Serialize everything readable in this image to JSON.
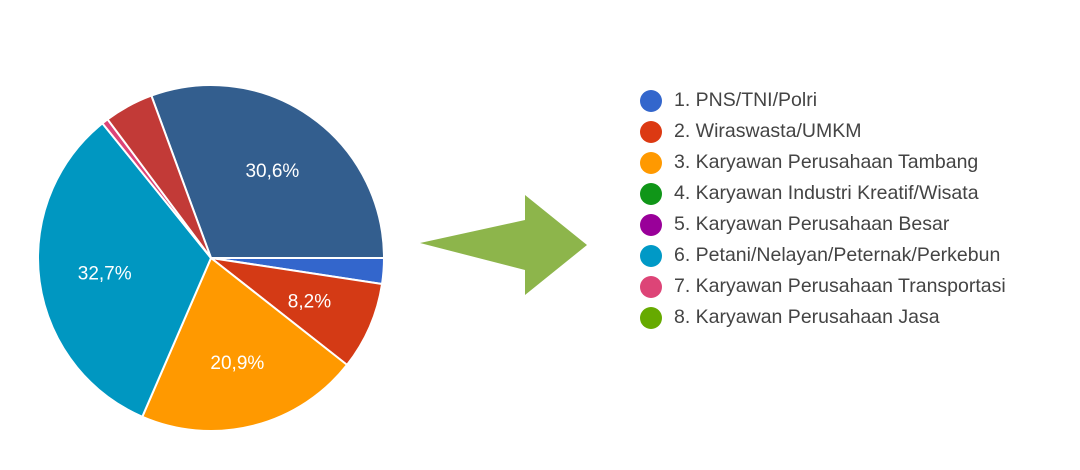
{
  "chart_data": {
    "type": "pie",
    "categories": [
      "1. PNS/TNI/Polri",
      "2. Wiraswasta/UMKM",
      "3. Karyawan Perusahaan Tambang",
      "4. Karyawan Industri Kreatif/Wisata",
      "5. Karyawan Perusahaan Besar",
      "6. Petani/Nelayan/Peternak/Perkebun",
      "7. Karyawan Perusahaan Transportasi",
      "8. Karyawan Perusahaan Jasa"
    ],
    "values": [
      2.4,
      8.2,
      20.9,
      0.0,
      0.0,
      32.7,
      0.6,
      4.6
    ],
    "slice_order": [
      0,
      1,
      2,
      5,
      6,
      7,
      8
    ],
    "extra_slice": {
      "value": 30.6,
      "label": "30,6%",
      "color": "#335E8E"
    },
    "data_labels": [
      "",
      "8,2%",
      "20,9%",
      "",
      "",
      "32,7%",
      "",
      ""
    ],
    "colors": [
      "#3366CC",
      "#DC3912",
      "#FF9900",
      "#109618",
      "#990099",
      "#0099C6",
      "#DD4477",
      "#66AA00"
    ],
    "slice_colors": [
      "#3366CC",
      "#D43A15",
      "#FF9900",
      "#109618",
      "#990099",
      "#0097C1",
      "#DD4477",
      "#C23A37"
    ],
    "legend": {
      "position": "right",
      "items": [
        "1. PNS/TNI/Polri",
        "2. Wiraswasta/UMKM",
        "3. Karyawan Perusahaan Tambang",
        "4. Karyawan Industri Kreatif/Wisata",
        "5. Karyawan Perusahaan Besar",
        "6. Petani/Nelayan/Peternak/Perkebun",
        "7. Karyawan Perusahaan Transportasi",
        "8. Karyawan Perusahaan Jasa"
      ]
    },
    "arrow_color": "#8DB54B"
  }
}
